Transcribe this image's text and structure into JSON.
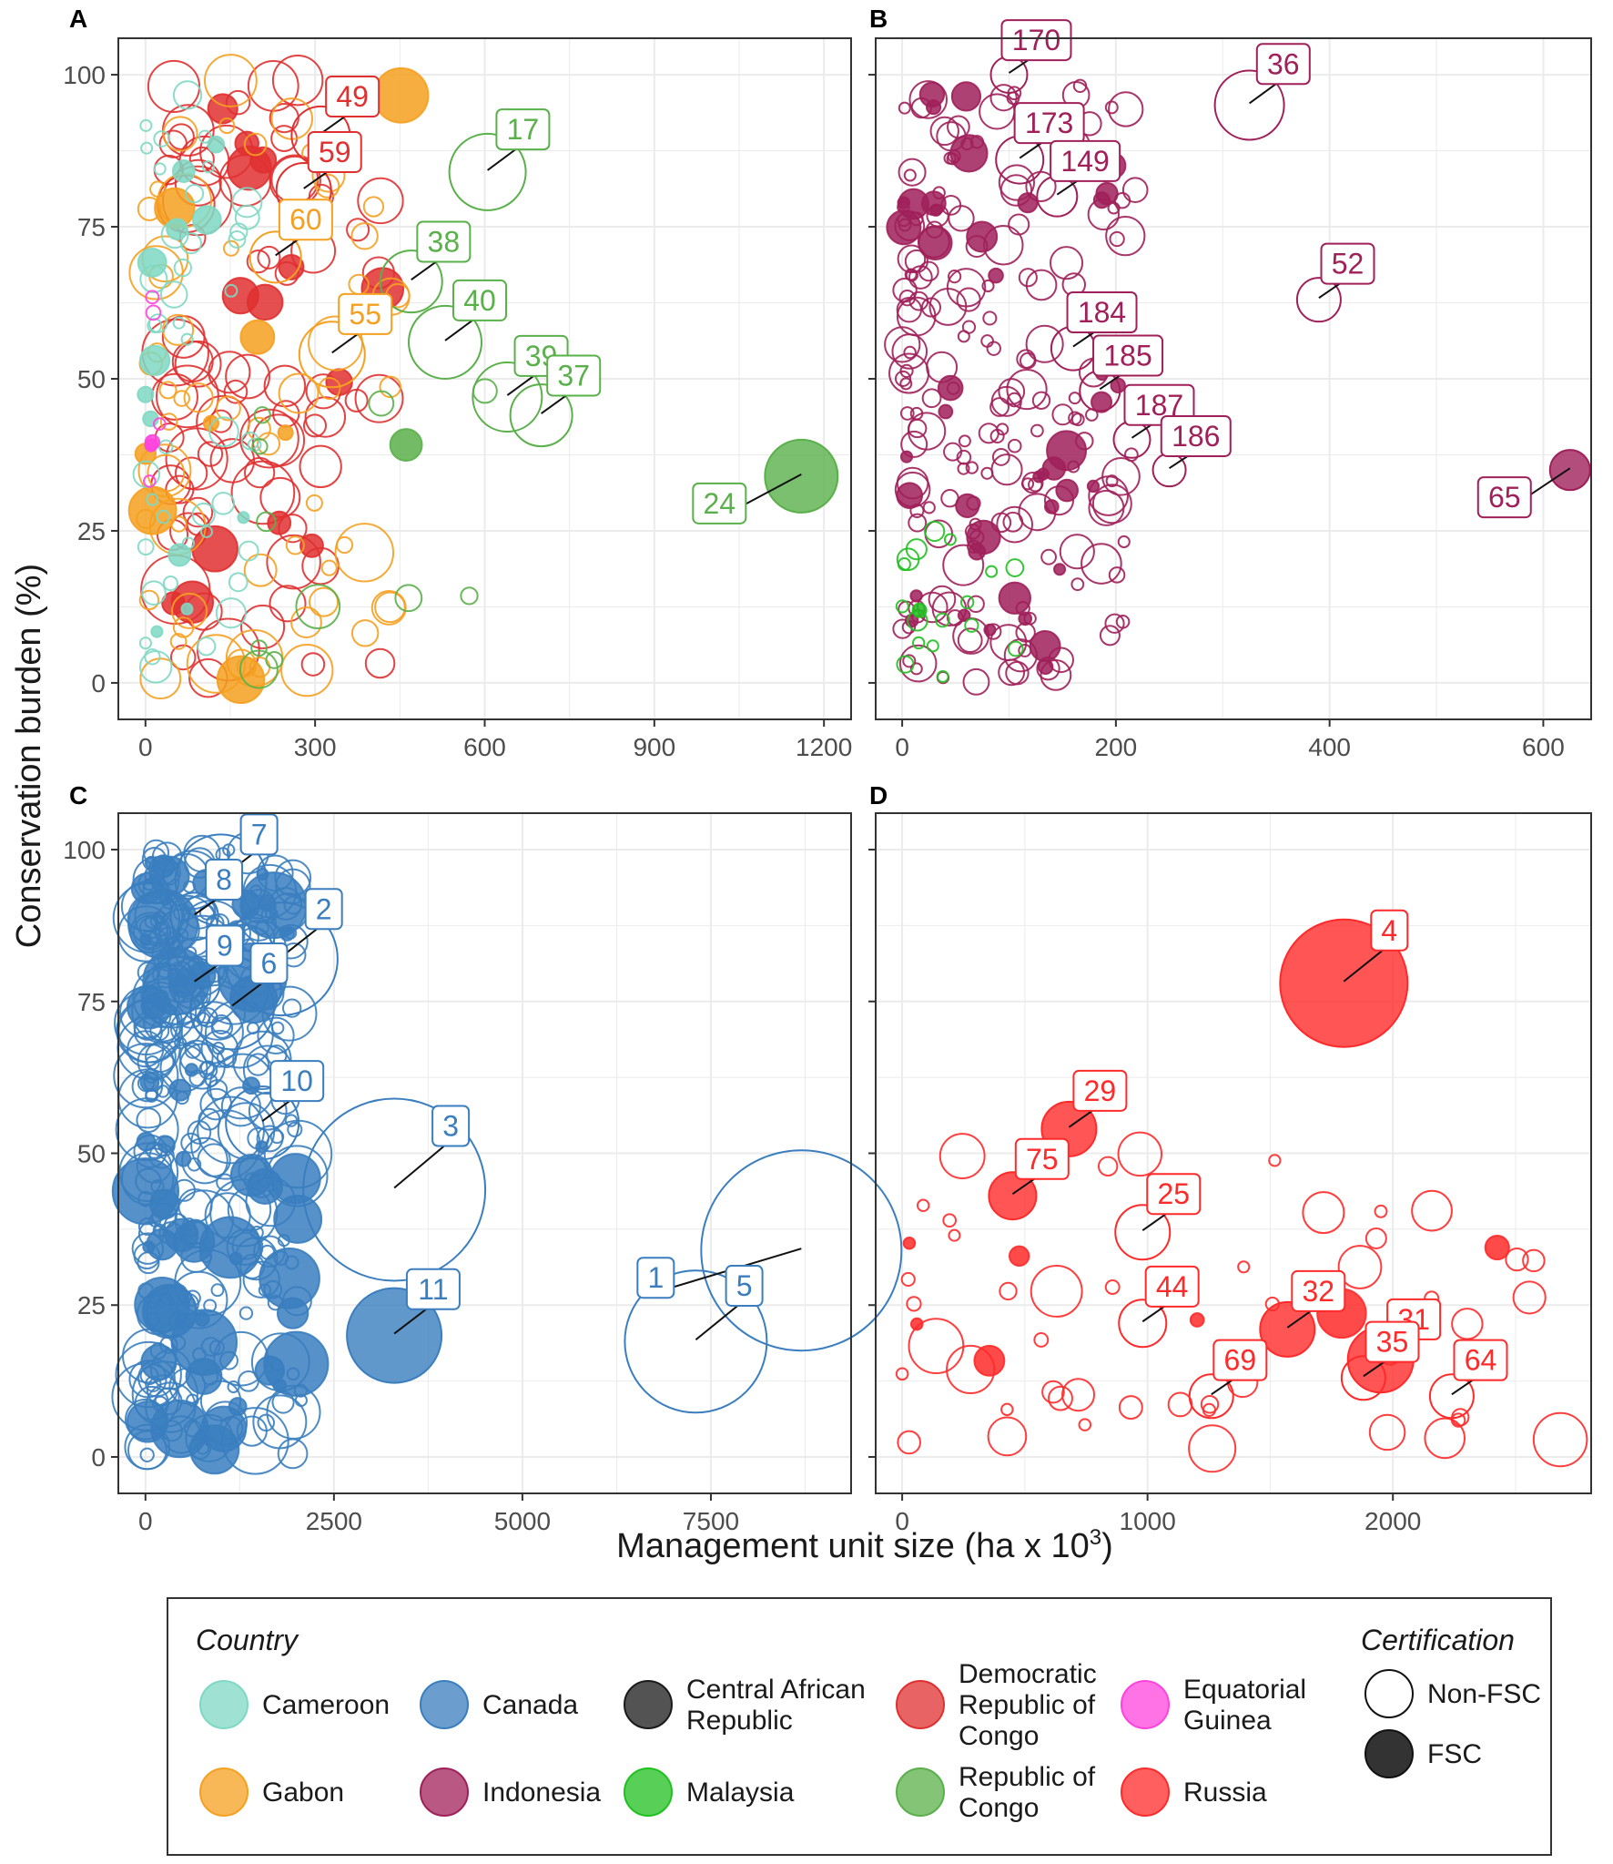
{
  "y_axis_title": "Conservation burden (%)",
  "x_axis_title": "Management unit size (ha x 10",
  "x_axis_title_sup": "3",
  "x_axis_title_end": ")",
  "colors": {
    "Cameroon": "#7fd8c4",
    "Canada": "#3a7ebf",
    "Central African Republic": "#1a1a1a",
    "Democratic Republic of Congo": "#e03030",
    "Equatorial Guinea": "#ff44dd",
    "Gabon": "#f5a020",
    "Indonesia": "#a0205a",
    "Malaysia": "#20c020",
    "Republic of Congo": "#5ab04a",
    "Russia": "#ff2a2a"
  },
  "chart_data": [
    {
      "panel": "A",
      "type": "scatter",
      "xlim": [
        0,
        1200
      ],
      "ylim": [
        0,
        100
      ],
      "xticks": [
        "0",
        "300",
        "600",
        "900",
        "1200"
      ],
      "yticks": [
        "0",
        "25",
        "50",
        "75",
        "100"
      ],
      "labels": [
        {
          "text": "49",
          "country": "Democratic Republic of Congo",
          "x": 310,
          "y": 90
        },
        {
          "text": "59",
          "country": "Democratic Republic of Congo",
          "x": 280,
          "y": 81
        },
        {
          "text": "60",
          "country": "Gabon",
          "x": 230,
          "y": 70
        },
        {
          "text": "55",
          "country": "Gabon",
          "x": 330,
          "y": 54
        },
        {
          "text": "17",
          "country": "Republic of Congo",
          "x": 605,
          "y": 84
        },
        {
          "text": "38",
          "country": "Republic of Congo",
          "x": 470,
          "y": 66
        },
        {
          "text": "40",
          "country": "Republic of Congo",
          "x": 530,
          "y": 56
        },
        {
          "text": "39",
          "country": "Republic of Congo",
          "x": 640,
          "y": 47
        },
        {
          "text": "37",
          "country": "Republic of Congo",
          "x": 700,
          "y": 44
        },
        {
          "text": "24",
          "country": "Republic of Congo",
          "x": 1160,
          "y": 34
        }
      ]
    },
    {
      "panel": "B",
      "type": "scatter",
      "xlim": [
        0,
        620
      ],
      "ylim": [
        0,
        100
      ],
      "xticks": [
        "0",
        "200",
        "400",
        "600"
      ],
      "yticks": [
        "0",
        "25",
        "50",
        "75",
        "100"
      ],
      "labels": [
        {
          "text": "36",
          "country": "Indonesia",
          "x": 325,
          "y": 95
        },
        {
          "text": "170",
          "country": "Indonesia",
          "x": 100,
          "y": 100
        },
        {
          "text": "173",
          "country": "Indonesia",
          "x": 110,
          "y": 86
        },
        {
          "text": "149",
          "country": "Indonesia",
          "x": 145,
          "y": 80
        },
        {
          "text": "52",
          "country": "Indonesia",
          "x": 390,
          "y": 63
        },
        {
          "text": "184",
          "country": "Indonesia",
          "x": 160,
          "y": 55
        },
        {
          "text": "185",
          "country": "Indonesia",
          "x": 185,
          "y": 48
        },
        {
          "text": "187",
          "country": "Indonesia",
          "x": 215,
          "y": 40
        },
        {
          "text": "186",
          "country": "Indonesia",
          "x": 250,
          "y": 35
        },
        {
          "text": "65",
          "country": "Indonesia",
          "x": 625,
          "y": 35
        }
      ]
    },
    {
      "panel": "C",
      "type": "scatter",
      "xlim": [
        0,
        9000
      ],
      "ylim": [
        0,
        100
      ],
      "xticks": [
        "0",
        "2500",
        "5000",
        "7500"
      ],
      "yticks": [
        "0",
        "25",
        "50",
        "75",
        "100"
      ],
      "labels": [
        {
          "text": "7",
          "country": "Canada",
          "x": 1000,
          "y": 95
        },
        {
          "text": "2",
          "country": "Canada",
          "x": 1800,
          "y": 82
        },
        {
          "text": "8",
          "country": "Canada",
          "x": 650,
          "y": 89
        },
        {
          "text": "6",
          "country": "Canada",
          "x": 1150,
          "y": 74
        },
        {
          "text": "9",
          "country": "Canada",
          "x": 650,
          "y": 78
        },
        {
          "text": "10",
          "country": "Canada",
          "x": 1550,
          "y": 55
        },
        {
          "text": "3",
          "country": "Canada",
          "x": 3300,
          "y": 44
        },
        {
          "text": "1",
          "country": "Canada",
          "x": 8700,
          "y": 34
        },
        {
          "text": "11",
          "country": "Canada",
          "x": 3300,
          "y": 20
        },
        {
          "text": "5",
          "country": "Canada",
          "x": 7300,
          "y": 19
        }
      ]
    },
    {
      "panel": "D",
      "type": "scatter",
      "xlim": [
        0,
        2700
      ],
      "ylim": [
        0,
        100
      ],
      "xticks": [
        "0",
        "1000",
        "2000"
      ],
      "yticks": [
        "0",
        "25",
        "50",
        "75",
        "100"
      ],
      "labels": [
        {
          "text": "4",
          "country": "Russia",
          "x": 1800,
          "y": 78
        },
        {
          "text": "29",
          "country": "Russia",
          "x": 680,
          "y": 54
        },
        {
          "text": "25",
          "country": "Russia",
          "x": 980,
          "y": 37
        },
        {
          "text": "75",
          "country": "Russia",
          "x": 450,
          "y": 43
        },
        {
          "text": "32",
          "country": "Russia",
          "x": 1570,
          "y": 21
        },
        {
          "text": "31",
          "country": "Russia",
          "x": 1950,
          "y": 16
        },
        {
          "text": "44",
          "country": "Russia",
          "x": 980,
          "y": 22
        },
        {
          "text": "69",
          "country": "Russia",
          "x": 1260,
          "y": 10
        },
        {
          "text": "35",
          "country": "Russia",
          "x": 1880,
          "y": 13
        },
        {
          "text": "64",
          "country": "Russia",
          "x": 2240,
          "y": 10
        }
      ]
    }
  ],
  "panel_tags": [
    "A",
    "B",
    "C",
    "D"
  ],
  "legend": {
    "country_title": "Country",
    "countries": [
      {
        "name": "Cameroon",
        "lines": [
          "Cameroon"
        ]
      },
      {
        "name": "Canada",
        "lines": [
          "Canada"
        ]
      },
      {
        "name": "Central African Republic",
        "lines": [
          "Central African",
          "Republic"
        ]
      },
      {
        "name": "Democratic Republic of Congo",
        "lines": [
          "Democratic",
          "Republic of",
          "Congo"
        ]
      },
      {
        "name": "Equatorial Guinea",
        "lines": [
          "Equatorial",
          "Guinea"
        ]
      },
      {
        "name": "Gabon",
        "lines": [
          "Gabon"
        ]
      },
      {
        "name": "Indonesia",
        "lines": [
          "Indonesia"
        ]
      },
      {
        "name": "Malaysia",
        "lines": [
          "Malaysia"
        ]
      },
      {
        "name": "Republic of Congo",
        "lines": [
          "Republic of",
          "Congo"
        ]
      },
      {
        "name": "Russia",
        "lines": [
          "Russia"
        ]
      }
    ],
    "cert_title": "Certification",
    "certifications": [
      "Non-FSC",
      "FSC"
    ]
  }
}
